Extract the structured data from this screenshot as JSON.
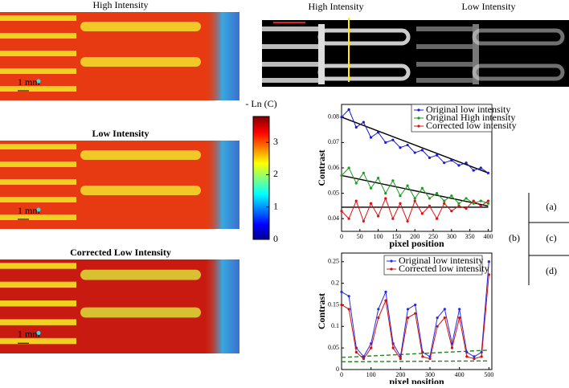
{
  "figure": {
    "heatmaps": [
      {
        "title": "High Intensity",
        "scale": "1 mm"
      },
      {
        "title": "Low Intensity",
        "scale": "1 mm"
      },
      {
        "title": "Corrected Low Intensity",
        "scale": "1 mm"
      }
    ],
    "colorbar": {
      "label": "- Ln (C)",
      "lim": [
        0,
        3.8
      ],
      "ticks": [
        0,
        1,
        2,
        3
      ]
    },
    "gray_image": {
      "titles": [
        "High Intensity",
        "Low Intensity"
      ]
    },
    "key": {
      "a": "(a)",
      "b": "(b)",
      "c": "(c)",
      "d": "(d)"
    }
  },
  "chart_data": [
    {
      "type": "line",
      "xlabel": "pixel position",
      "ylabel": "Contrast",
      "x": [
        0,
        20,
        40,
        60,
        80,
        100,
        120,
        140,
        160,
        180,
        200,
        220,
        240,
        260,
        280,
        300,
        320,
        340,
        360,
        380,
        400
      ],
      "xlim": [
        0,
        410
      ],
      "xticks": [
        0,
        50,
        100,
        150,
        200,
        250,
        300,
        350,
        400
      ],
      "ylim": [
        0.035,
        0.085
      ],
      "yticks": [
        0.04,
        0.05,
        0.06,
        0.07,
        0.08
      ],
      "series": [
        {
          "name": "Original low intensity",
          "color": "#1a1ad0",
          "values": [
            0.08,
            0.083,
            0.076,
            0.078,
            0.072,
            0.074,
            0.07,
            0.071,
            0.068,
            0.069,
            0.066,
            0.067,
            0.064,
            0.065,
            0.062,
            0.063,
            0.061,
            0.062,
            0.059,
            0.06,
            0.058
          ]
        },
        {
          "name": "Original High intensity",
          "color": "#1f9a1f",
          "values": [
            0.057,
            0.06,
            0.054,
            0.058,
            0.052,
            0.056,
            0.05,
            0.055,
            0.049,
            0.053,
            0.048,
            0.052,
            0.048,
            0.05,
            0.047,
            0.049,
            0.046,
            0.048,
            0.046,
            0.047,
            0.046
          ]
        },
        {
          "name": "Corrected low intensity",
          "color": "#e01010",
          "values": [
            0.043,
            0.04,
            0.047,
            0.039,
            0.046,
            0.041,
            0.048,
            0.04,
            0.046,
            0.039,
            0.047,
            0.042,
            0.045,
            0.04,
            0.046,
            0.043,
            0.045,
            0.044,
            0.047,
            0.045,
            0.047
          ]
        }
      ],
      "fits": [
        {
          "color": "#000000",
          "x": [
            0,
            400
          ],
          "values": [
            0.08,
            0.058
          ]
        },
        {
          "color": "#000000",
          "x": [
            0,
            400
          ],
          "values": [
            0.057,
            0.045
          ]
        },
        {
          "color": "#000000",
          "x": [
            0,
            400
          ],
          "values": [
            0.0445,
            0.0445
          ]
        }
      ]
    },
    {
      "type": "line",
      "xlabel": "pixel position",
      "ylabel": "Contrast",
      "x": [
        0,
        25,
        50,
        75,
        100,
        125,
        150,
        175,
        200,
        225,
        250,
        275,
        300,
        325,
        350,
        375,
        400,
        425,
        450,
        475,
        500
      ],
      "xlim": [
        0,
        510
      ],
      "xticks": [
        0,
        100,
        200,
        300,
        400,
        500
      ],
      "ylim": [
        0,
        0.27
      ],
      "yticks": [
        0,
        0.05,
        0.1,
        0.15,
        0.2,
        0.25
      ],
      "series": [
        {
          "name": "Original low intensity",
          "color": "#2a2ae0",
          "values": [
            0.18,
            0.17,
            0.05,
            0.03,
            0.06,
            0.14,
            0.18,
            0.06,
            0.03,
            0.14,
            0.15,
            0.04,
            0.03,
            0.12,
            0.14,
            0.06,
            0.14,
            0.04,
            0.03,
            0.04,
            0.25
          ]
        },
        {
          "name": "Corrected low intensity",
          "color": "#d01010",
          "values": [
            0.15,
            0.14,
            0.04,
            0.025,
            0.05,
            0.12,
            0.16,
            0.05,
            0.025,
            0.12,
            0.13,
            0.03,
            0.025,
            0.1,
            0.12,
            0.05,
            0.12,
            0.03,
            0.025,
            0.03,
            0.22
          ]
        }
      ],
      "fits": [
        {
          "color": "#1a8a1a",
          "x": [
            0,
            500
          ],
          "values": [
            0.028,
            0.045
          ]
        },
        {
          "color": "#1a8a1a",
          "x": [
            0,
            500
          ],
          "values": [
            0.018,
            0.02
          ]
        }
      ]
    }
  ]
}
